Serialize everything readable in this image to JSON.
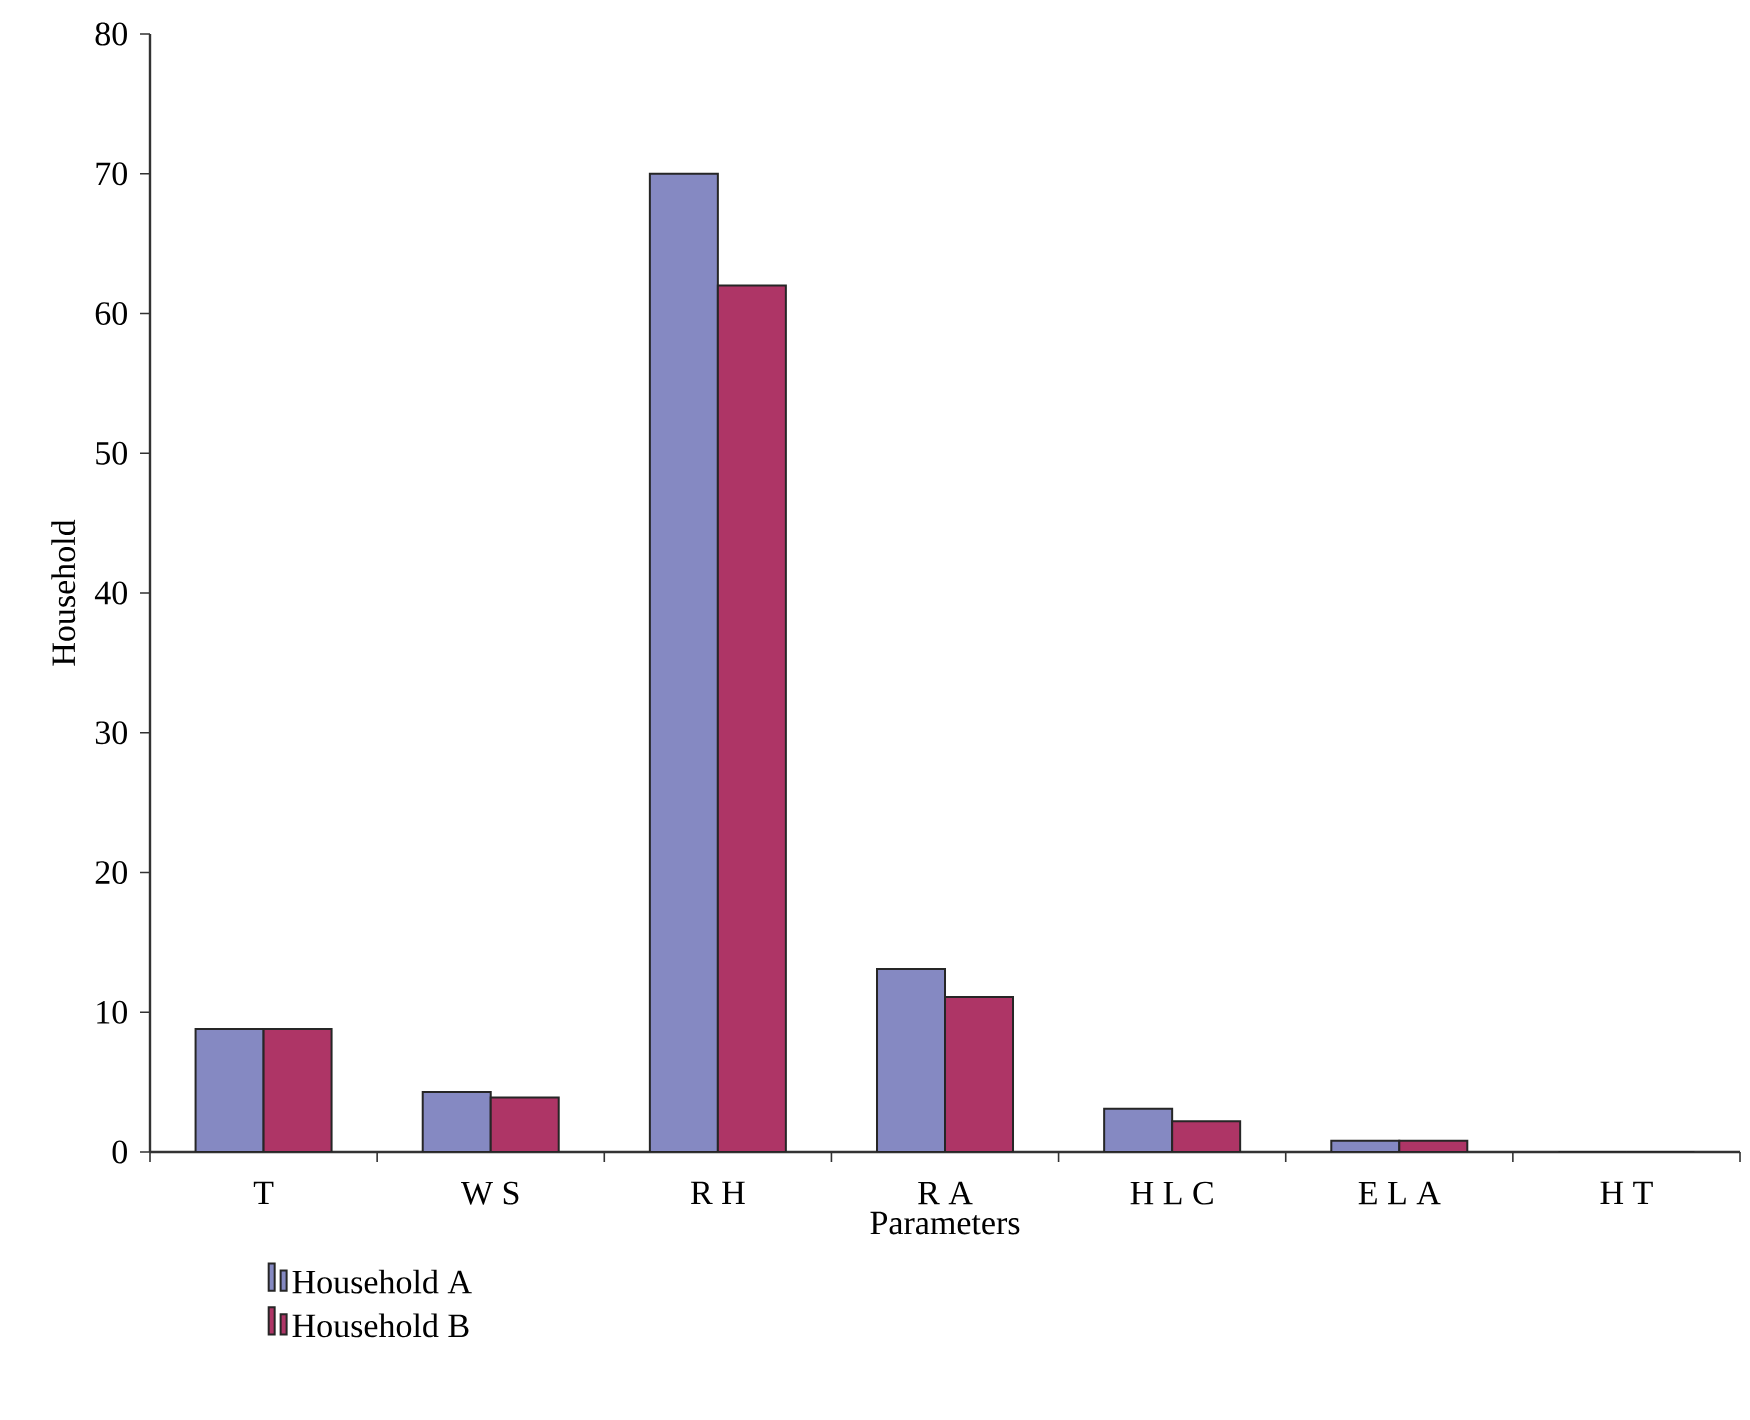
{
  "chart_data": {
    "type": "bar",
    "xlabel": "Parameters",
    "ylabel": "Household",
    "categories": [
      "T",
      "W S",
      "R H",
      "R A",
      "H L C",
      "E L A",
      "H T"
    ],
    "series": [
      {
        "name": "Household A",
        "color": "#8589c2",
        "values": [
          8.8,
          4.3,
          70,
          13.1,
          3.1,
          0.8,
          0
        ]
      },
      {
        "name": "Household B",
        "color": "#ae3566",
        "values": [
          8.8,
          3.9,
          62,
          11.1,
          2.2,
          0.8,
          0
        ]
      }
    ],
    "ylim": [
      0,
      80
    ],
    "yticks": [
      0,
      10,
      20,
      30,
      40,
      50,
      60,
      70,
      80
    ],
    "grid": false,
    "legend": "bottom left"
  }
}
